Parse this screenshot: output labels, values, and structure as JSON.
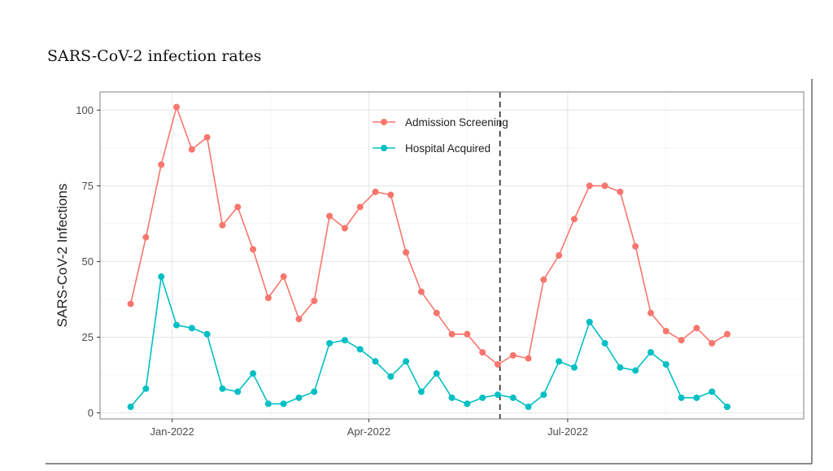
{
  "page": {
    "title": "SARS-CoV-2 infection rates"
  },
  "chart_data": {
    "type": "line",
    "title": "",
    "xlabel": "",
    "ylabel": "SARS-CoV-2 Infections",
    "x_start": "2021-12-13",
    "x_step_days": 7,
    "x_range": [
      "2021-11-29",
      "2022-10-17"
    ],
    "ylim": [
      -2,
      106
    ],
    "x_ticks": [
      {
        "date": "2022-01-01",
        "label": "Jan-2022"
      },
      {
        "date": "2022-04-01",
        "label": "Apr-2022"
      },
      {
        "date": "2022-07-01",
        "label": "Jul-2022"
      }
    ],
    "y_ticks": [
      0,
      25,
      50,
      75,
      100
    ],
    "grid": true,
    "legend_position": "top-center",
    "vline_date": "2022-05-31",
    "series": [
      {
        "name": "Admission Screening",
        "color": "#F8766D",
        "values": [
          36,
          58,
          82,
          101,
          87,
          91,
          62,
          68,
          54,
          38,
          45,
          31,
          37,
          65,
          61,
          68,
          73,
          72,
          53,
          40,
          33,
          26,
          26,
          20,
          16,
          19,
          18,
          44,
          52,
          64,
          75,
          75,
          73,
          55,
          33,
          27,
          24,
          28,
          23,
          26
        ]
      },
      {
        "name": "Hospital Acquired",
        "color": "#00BFC4",
        "values": [
          2,
          8,
          45,
          29,
          28,
          26,
          8,
          7,
          13,
          3,
          3,
          5,
          7,
          23,
          24,
          21,
          17,
          12,
          17,
          7,
          13,
          5,
          3,
          5,
          6,
          5,
          2,
          6,
          17,
          15,
          30,
          23,
          15,
          14,
          20,
          16,
          5,
          5,
          7,
          2
        ]
      }
    ]
  }
}
